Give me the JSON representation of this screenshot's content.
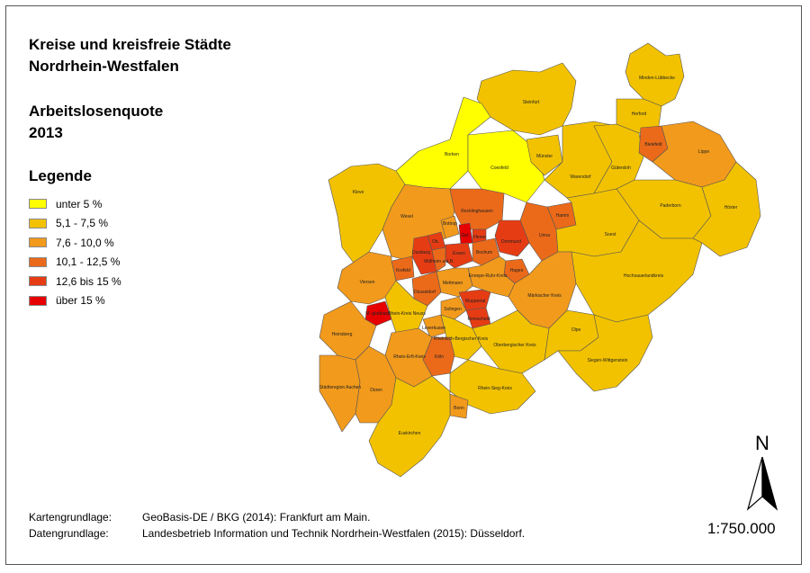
{
  "title_line1": "Kreise und kreisfreie Städte",
  "title_line2": "Nordrhein-Westfalen",
  "subtitle_line1": "Arbeitslosenquote",
  "subtitle_line2": "2013",
  "legend": {
    "title": "Legende",
    "items": [
      {
        "label": "unter 5 %",
        "color": "#ffff00"
      },
      {
        "label": "5,1 - 7,5 %",
        "color": "#f2c200"
      },
      {
        "label": "7,6 - 10,0 %",
        "color": "#f29a1c"
      },
      {
        "label": "10,1 - 12,5 %",
        "color": "#eb6a1a"
      },
      {
        "label": "12,6 bis 15 %",
        "color": "#e63c14"
      },
      {
        "label": "über 15 %",
        "color": "#e60000"
      }
    ]
  },
  "credits": [
    {
      "key": "Kartengrundlage:",
      "value": "GeoBasis-DE / BKG (2014): Frankfurt am Main."
    },
    {
      "key": "Datengrundlage:",
      "value": "Landesbetrieb Information und Technik Nordrhein-Westfalen (2015): Düsseldorf."
    }
  ],
  "north_letter": "N",
  "scale": "1:750.000",
  "map_labels": {
    "minden": "Minden-Lübbecke",
    "steinfurt": "Steinfurt",
    "herford": "Herford",
    "bielefeld": "Bielefeld",
    "lippe": "Lippe",
    "borken": "Borken",
    "coesfeld": "Coesfeld",
    "muenster": "Münster",
    "warendorf": "Warendorf",
    "guetersloh": "Gütersloh",
    "kleve": "Kleve",
    "paderborn": "Paderborn",
    "hoexter": "Höxter",
    "wesel": "Wesel",
    "recklinghausen": "Recklinghausen",
    "hamm": "Hamm",
    "bottrop": "Bottrop",
    "soest": "Soest",
    "gelsenkirchen": "Gel.",
    "herne": "Herne",
    "dortmund": "Dortmund",
    "unna": "Unna",
    "oberhausen": "Ob.",
    "essen": "Essen",
    "bochum": "Bochum",
    "duisburg": "Duisburg",
    "muelheim": "Mülheim a.d.R.",
    "hagen": "Hagen",
    "krefeld": "Krefeld",
    "ennepe": "Ennepe-Ruhr-Kreis",
    "hochsauerland": "Hochsauerlandkreis",
    "viersen": "Viersen",
    "mettmann": "Mettmann",
    "duesseldorf": "Düsseldorf",
    "wuppertal": "Wuppertal",
    "maerkisch": "Märkischer Kreis",
    "mgladbach": "M.-gladbach",
    "rheinkreisneuss": "Rhein-Kreis Neuss",
    "solingen": "Solingen",
    "remscheid": "Remscheid",
    "olpe": "Olpe",
    "heinsberg": "Heinsberg",
    "leverkusen": "Leverkusen",
    "rheinberg": "Rheinisch-Bergischer Kreis",
    "oberberg": "Oberbergischer Kreis",
    "koeln": "Köln",
    "rheinerft": "Rhein-Erft-Kreis",
    "siegen": "Siegen-Wittgenstein",
    "aachen": "Städteregion Aachen",
    "dueren": "Düren",
    "rheinsieg": "Rhein-Sieg-Kreis",
    "bonn": "Bonn",
    "euskirchen": "Euskirchen"
  }
}
